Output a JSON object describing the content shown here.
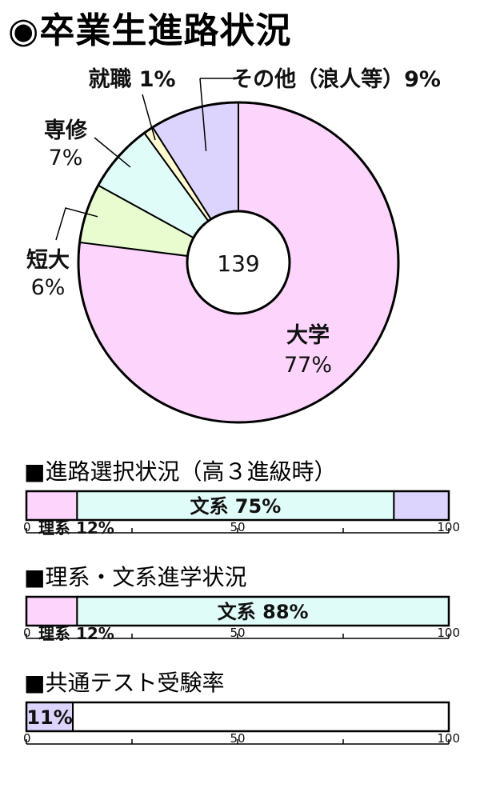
{
  "page_title": "◉卒業生進路状況",
  "colors": {
    "university": "#fcd4fc",
    "junior_college": "#e8fcd0",
    "vocational": "#e0fcf8",
    "employment": "#fffad0",
    "other": "#dcd4fc",
    "science": "#fcd4fc",
    "humanities": "#e0fcf8",
    "undecided": "#dcd4fc",
    "blank": "#ffffff",
    "stroke": "#000000"
  },
  "chart_data": [
    {
      "type": "pie",
      "center_label": "139",
      "slices": [
        {
          "key": "university",
          "name": "大学",
          "value": 77,
          "label_line1": "大学",
          "label_line2": "77%"
        },
        {
          "key": "junior_college",
          "name": "短大",
          "value": 6,
          "label_line1": "短大",
          "label_line2": "6%"
        },
        {
          "key": "vocational",
          "name": "専修",
          "value": 7,
          "label_line1": "専修",
          "label_line2": "7%"
        },
        {
          "key": "employment",
          "name": "就職",
          "value": 1,
          "label_line1": "就職 1%",
          "label_line2": ""
        },
        {
          "key": "other",
          "name": "その他（浪人等）",
          "value": 9,
          "label_line1": "その他（浪人等）9%",
          "label_line2": ""
        }
      ]
    },
    {
      "type": "bar",
      "title": "■進路選択状況（高３進級時）",
      "segments": [
        {
          "key": "science",
          "value": 12,
          "text": ""
        },
        {
          "key": "humanities",
          "value": 75,
          "text": "文系 75%"
        },
        {
          "key": "undecided",
          "value": 13,
          "text": ""
        }
      ],
      "note": "理系 12%",
      "axis": {
        "min": 0,
        "max": 100,
        "tick_labels": [
          "0",
          "50",
          "100"
        ]
      }
    },
    {
      "type": "bar",
      "title": "■理系・文系進学状況",
      "segments": [
        {
          "key": "science",
          "value": 12,
          "text": ""
        },
        {
          "key": "humanities",
          "value": 88,
          "text": "文系 88%"
        }
      ],
      "note": "理系 12%",
      "axis": {
        "min": 0,
        "max": 100,
        "tick_labels": [
          "0",
          "50",
          "100"
        ]
      }
    },
    {
      "type": "bar",
      "title": "■共通テスト受験率",
      "segments": [
        {
          "key": "undecided",
          "value": 11,
          "text": "11%"
        },
        {
          "key": "blank",
          "value": 89,
          "text": ""
        }
      ],
      "note": "",
      "axis": {
        "min": 0,
        "max": 100,
        "tick_labels": [
          "0",
          "50",
          "100"
        ]
      }
    }
  ]
}
